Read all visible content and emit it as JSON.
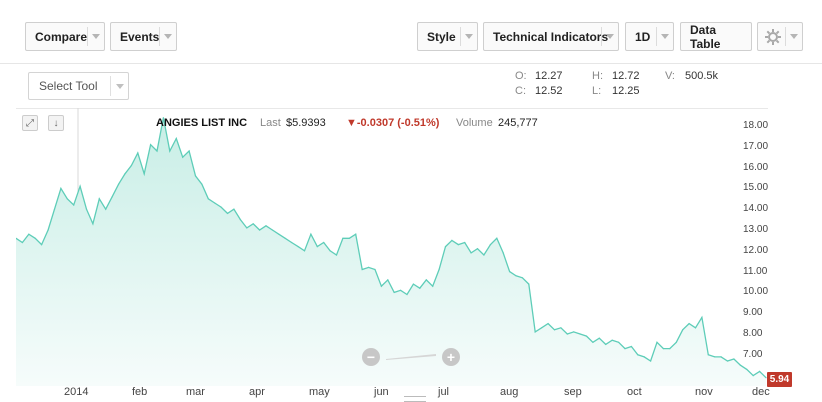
{
  "toolbar": {
    "compare_label": "Compare",
    "events_label": "Events",
    "style_label": "Style",
    "indicators_label": "Technical Indicators",
    "interval_label": "1D",
    "data_table_label": "Data Table",
    "settings_icon": "gear-icon"
  },
  "select_tool": {
    "label": "Select Tool"
  },
  "ohlc": {
    "open_label": "O:",
    "open": "12.27",
    "close_label": "C:",
    "close": "12.52",
    "high_label": "H:",
    "high": "12.72",
    "low_label": "L:",
    "low": "12.25",
    "volume_label": "V:",
    "volume": "500.5k"
  },
  "quote": {
    "name": "ANGIES LIST INC",
    "last_label": "Last",
    "last_value": "$5.9393",
    "change": "▼-0.0307 (-0.51%)",
    "volume_label": "Volume",
    "volume_value": "245,777"
  },
  "colors": {
    "line": "#5ecdb8",
    "fill_top": "#c8eee6",
    "fill_bottom": "#f6fcfb",
    "down": "#c0392b"
  },
  "chart_data": {
    "type": "area",
    "yticks": [
      "18.00",
      "17.00",
      "16.00",
      "15.00",
      "14.00",
      "13.00",
      "12.00",
      "11.00",
      "10.00",
      "9.00",
      "8.00",
      "7.00"
    ],
    "xticks": [
      "2014",
      "feb",
      "mar",
      "apr",
      "may",
      "jun",
      "jul",
      "aug",
      "sep",
      "oct",
      "nov",
      "dec"
    ],
    "ylim": [
      6.0,
      18.5
    ],
    "last_price_badge": "5.94",
    "series": [
      {
        "values": [
          12.6,
          12.4,
          12.8,
          12.6,
          12.3,
          13.0,
          14.0,
          15.0,
          14.5,
          14.2,
          15.1,
          14.0,
          13.3,
          14.5,
          14.0,
          14.6,
          15.2,
          15.7,
          16.1,
          16.7,
          15.7,
          17.1,
          16.8,
          18.4,
          16.8,
          17.4,
          16.5,
          16.8,
          15.6,
          15.2,
          14.5,
          14.3,
          14.1,
          13.8,
          14.0,
          13.5,
          13.1,
          13.3,
          13.0,
          13.2,
          13.0,
          12.8,
          12.6,
          12.4,
          12.2,
          12.0,
          12.8,
          12.2,
          12.4,
          12.0,
          11.8,
          12.6,
          12.6,
          12.8,
          11.1,
          11.2,
          11.1,
          10.3,
          10.6,
          10.0,
          10.1,
          9.9,
          10.4,
          10.2,
          10.6,
          10.3,
          11.1,
          12.2,
          12.5,
          12.3,
          12.4,
          11.9,
          12.1,
          11.8,
          12.3,
          12.6,
          11.9,
          11.0,
          10.8,
          10.7,
          10.4,
          8.1,
          8.3,
          8.5,
          8.2,
          8.3,
          8.0,
          8.1,
          8.0,
          7.9,
          7.6,
          7.8,
          7.5,
          7.7,
          7.6,
          7.3,
          7.4,
          7.0,
          6.9,
          6.7,
          7.6,
          7.3,
          7.3,
          7.6,
          8.2,
          8.5,
          8.3,
          8.8,
          7.0,
          6.9,
          6.9,
          6.7,
          6.8,
          6.5,
          6.3,
          6.0,
          6.2,
          5.9
        ]
      }
    ]
  }
}
